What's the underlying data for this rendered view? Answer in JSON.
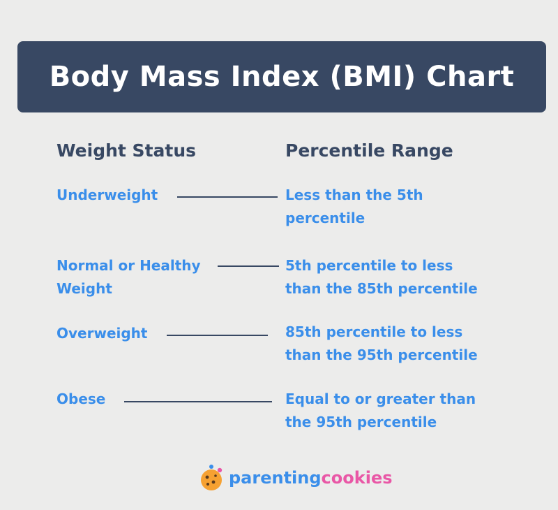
{
  "title": "Body Mass Index (BMI) Chart",
  "headers": {
    "status": "Weight Status",
    "range": "Percentile Range"
  },
  "rows": [
    {
      "status_lines": [
        "Underweight"
      ],
      "range_lines": [
        "Less than the 5th",
        "percentile"
      ]
    },
    {
      "status_lines": [
        "Normal or Healthy",
        "Weight"
      ],
      "range_lines": [
        "5th percentile to less",
        "than the 85th percentile"
      ]
    },
    {
      "status_lines": [
        "Overweight"
      ],
      "range_lines": [
        "85th percentile to less",
        "than the 95th percentile"
      ]
    },
    {
      "status_lines": [
        "Obese"
      ],
      "range_lines": [
        "Equal to or greater than",
        "the 95th percentile"
      ]
    }
  ],
  "logo": {
    "part1": "parenting",
    "part2": "cookies",
    "icon": "cookie-icon"
  },
  "colors": {
    "background": "#ececeb",
    "title_bar": "#384863",
    "header_text": "#384863",
    "row_text": "#3a8eea",
    "logo_part1": "#3a8eea",
    "logo_part2": "#e957a6"
  }
}
